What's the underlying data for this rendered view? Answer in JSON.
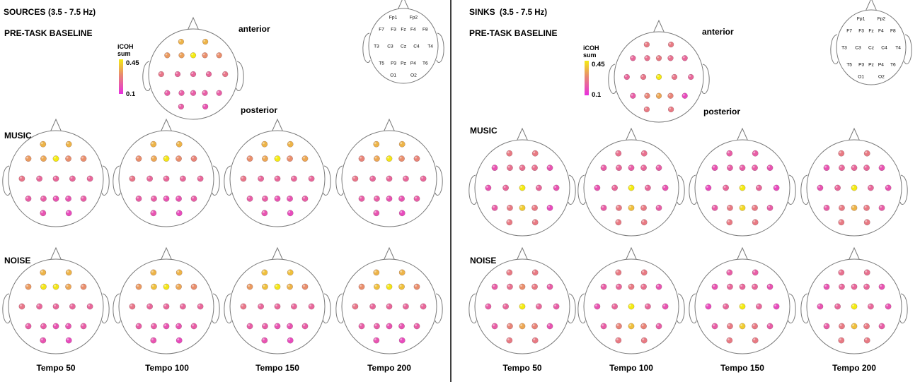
{
  "panels": [
    {
      "key": "sources",
      "title": "SOURCES",
      "freq": "(3.5 - 7.5 Hz)",
      "baseline_label": "PRE-TASK BASELINE",
      "music_label": "MUSIC",
      "noise_label": "NOISE",
      "anterior_label": "anterior",
      "posterior_label": "posterior",
      "colorbar": {
        "title_line1": "iCOH",
        "title_line2": "sum",
        "max_label": "0.45",
        "min_label": "0.1",
        "max": 0.45,
        "min": 0.1
      },
      "tempo_labels": [
        "Tempo 50",
        "Tempo 100",
        "Tempo 150",
        "Tempo 200"
      ],
      "baseline": [
        0.36,
        0.36,
        0.32,
        0.33,
        0.45,
        0.3,
        0.3,
        0.25,
        0.22,
        0.22,
        0.22,
        0.25,
        0.2,
        0.2,
        0.2,
        0.2,
        0.2,
        0.2,
        0.18
      ],
      "music": [
        [
          0.36,
          0.36,
          0.32,
          0.34,
          0.45,
          0.3,
          0.3,
          0.25,
          0.22,
          0.22,
          0.22,
          0.22,
          0.2,
          0.2,
          0.18,
          0.18,
          0.2,
          0.18,
          0.16
        ],
        [
          0.36,
          0.36,
          0.3,
          0.34,
          0.44,
          0.3,
          0.28,
          0.25,
          0.22,
          0.22,
          0.22,
          0.22,
          0.2,
          0.2,
          0.18,
          0.18,
          0.2,
          0.18,
          0.16
        ],
        [
          0.36,
          0.36,
          0.3,
          0.34,
          0.45,
          0.3,
          0.34,
          0.25,
          0.22,
          0.22,
          0.22,
          0.22,
          0.2,
          0.2,
          0.18,
          0.18,
          0.2,
          0.18,
          0.16
        ],
        [
          0.36,
          0.36,
          0.28,
          0.34,
          0.44,
          0.3,
          0.28,
          0.25,
          0.22,
          0.22,
          0.22,
          0.22,
          0.2,
          0.2,
          0.18,
          0.18,
          0.2,
          0.18,
          0.16
        ]
      ],
      "noise": [
        [
          0.36,
          0.36,
          0.32,
          0.44,
          0.44,
          0.34,
          0.3,
          0.25,
          0.22,
          0.22,
          0.22,
          0.22,
          0.2,
          0.2,
          0.18,
          0.18,
          0.2,
          0.18,
          0.16
        ],
        [
          0.36,
          0.36,
          0.32,
          0.38,
          0.44,
          0.34,
          0.3,
          0.25,
          0.22,
          0.22,
          0.22,
          0.22,
          0.2,
          0.2,
          0.18,
          0.18,
          0.2,
          0.18,
          0.16
        ],
        [
          0.38,
          0.38,
          0.32,
          0.38,
          0.44,
          0.36,
          0.3,
          0.25,
          0.22,
          0.22,
          0.22,
          0.22,
          0.2,
          0.2,
          0.18,
          0.18,
          0.2,
          0.18,
          0.16
        ],
        [
          0.36,
          0.36,
          0.3,
          0.38,
          0.44,
          0.38,
          0.3,
          0.25,
          0.22,
          0.22,
          0.22,
          0.22,
          0.2,
          0.2,
          0.18,
          0.18,
          0.2,
          0.18,
          0.16
        ]
      ]
    },
    {
      "key": "sinks",
      "title": "SINKS",
      "freq": "(3.5 - 7.5 Hz)",
      "baseline_label": "PRE-TASK BASELINE",
      "music_label": "MUSIC",
      "noise_label": "NOISE",
      "anterior_label": "anterior",
      "posterior_label": "posterior",
      "colorbar": {
        "title_line1": "iCOH",
        "title_line2": "sum",
        "max_label": "0.45",
        "min_label": "0.1",
        "max": 0.45,
        "min": 0.1
      },
      "tempo_labels": [
        "Tempo 50",
        "Tempo 100",
        "Tempo 150",
        "Tempo 200"
      ],
      "baseline": [
        0.26,
        0.26,
        0.22,
        0.24,
        0.26,
        0.24,
        0.22,
        0.22,
        0.25,
        0.45,
        0.25,
        0.22,
        0.2,
        0.28,
        0.34,
        0.28,
        0.16,
        0.26,
        0.26
      ],
      "music": [
        [
          0.26,
          0.26,
          0.18,
          0.24,
          0.24,
          0.24,
          0.18,
          0.18,
          0.22,
          0.45,
          0.22,
          0.18,
          0.2,
          0.26,
          0.4,
          0.26,
          0.16,
          0.26,
          0.26
        ],
        [
          0.24,
          0.24,
          0.2,
          0.22,
          0.2,
          0.22,
          0.2,
          0.18,
          0.22,
          0.45,
          0.22,
          0.18,
          0.2,
          0.26,
          0.38,
          0.26,
          0.2,
          0.26,
          0.26
        ],
        [
          0.2,
          0.2,
          0.18,
          0.2,
          0.2,
          0.2,
          0.18,
          0.16,
          0.22,
          0.45,
          0.22,
          0.16,
          0.2,
          0.26,
          0.42,
          0.26,
          0.2,
          0.26,
          0.26
        ],
        [
          0.26,
          0.26,
          0.18,
          0.22,
          0.22,
          0.22,
          0.18,
          0.18,
          0.22,
          0.45,
          0.22,
          0.18,
          0.2,
          0.26,
          0.36,
          0.26,
          0.2,
          0.26,
          0.26
        ]
      ],
      "noise": [
        [
          0.26,
          0.26,
          0.2,
          0.24,
          0.3,
          0.26,
          0.2,
          0.2,
          0.22,
          0.45,
          0.22,
          0.2,
          0.2,
          0.28,
          0.34,
          0.28,
          0.18,
          0.26,
          0.26
        ],
        [
          0.26,
          0.26,
          0.2,
          0.22,
          0.26,
          0.24,
          0.18,
          0.18,
          0.22,
          0.45,
          0.22,
          0.18,
          0.2,
          0.28,
          0.38,
          0.28,
          0.2,
          0.26,
          0.26
        ],
        [
          0.2,
          0.2,
          0.18,
          0.22,
          0.22,
          0.22,
          0.18,
          0.16,
          0.22,
          0.45,
          0.22,
          0.16,
          0.2,
          0.26,
          0.4,
          0.26,
          0.2,
          0.26,
          0.26
        ],
        [
          0.24,
          0.24,
          0.18,
          0.22,
          0.22,
          0.22,
          0.18,
          0.18,
          0.22,
          0.45,
          0.22,
          0.18,
          0.2,
          0.26,
          0.38,
          0.26,
          0.2,
          0.26,
          0.26
        ]
      ]
    }
  ],
  "montage_labels": [
    "Fp1",
    "Fp2",
    "F7",
    "F3",
    "Fz",
    "F4",
    "F8",
    "T3",
    "C3",
    "Cz",
    "C4",
    "T4",
    "T5",
    "P3",
    "Pz",
    "P4",
    "T6",
    "O1",
    "O2"
  ],
  "colors": {
    "low": "#e82ee0",
    "mid": "#e88a70",
    "high": "#f4ec12",
    "outline": "#7a7a7a",
    "divider": "#000000"
  }
}
